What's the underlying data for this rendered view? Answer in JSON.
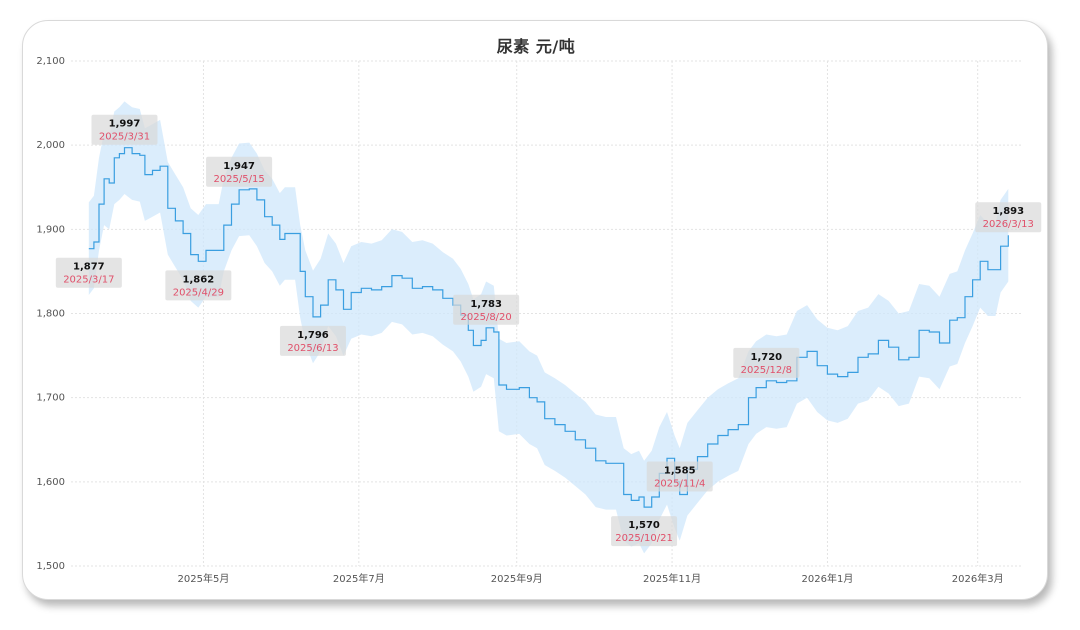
{
  "chart_data": {
    "type": "line",
    "title": "尿素 元/吨",
    "xlabel": "",
    "ylabel": "",
    "ylim": [
      1500,
      2100
    ],
    "y_ticks": [
      1500,
      1600,
      1700,
      1800,
      1900,
      2000,
      2100
    ],
    "y_tick_labels": [
      "1,500",
      "1,600",
      "1,700",
      "1,800",
      "1,900",
      "2,000",
      "2,100"
    ],
    "x_ticks": [
      {
        "date": "2025-05-01",
        "label": "2025年5月"
      },
      {
        "date": "2025-07-01",
        "label": "2025年7月"
      },
      {
        "date": "2025-09-01",
        "label": "2025年9月"
      },
      {
        "date": "2025-11-01",
        "label": "2025年11月"
      },
      {
        "date": "2026-01-01",
        "label": "2026年1月"
      },
      {
        "date": "2026-03-01",
        "label": "2026年3月"
      }
    ],
    "xlim": [
      "2025-03-10",
      "2026-03-18"
    ],
    "grid": true,
    "line_color": "#3a9ee0",
    "band_color": "#cfe7fb",
    "band_half_width": 55,
    "series": [
      {
        "values": [
          [
            "2025-03-17",
            1877
          ],
          [
            "2025-03-19",
            1885
          ],
          [
            "2025-03-21",
            1930
          ],
          [
            "2025-03-23",
            1960
          ],
          [
            "2025-03-25",
            1955
          ],
          [
            "2025-03-27",
            1985
          ],
          [
            "2025-03-29",
            1990
          ],
          [
            "2025-03-31",
            1997
          ],
          [
            "2025-04-03",
            1990
          ],
          [
            "2025-04-06",
            1988
          ],
          [
            "2025-04-08",
            1965
          ],
          [
            "2025-04-11",
            1970
          ],
          [
            "2025-04-14",
            1975
          ],
          [
            "2025-04-17",
            1925
          ],
          [
            "2025-04-20",
            1910
          ],
          [
            "2025-04-23",
            1895
          ],
          [
            "2025-04-26",
            1870
          ],
          [
            "2025-04-29",
            1862
          ],
          [
            "2025-05-02",
            1875
          ],
          [
            "2025-05-07",
            1875
          ],
          [
            "2025-05-09",
            1905
          ],
          [
            "2025-05-12",
            1930
          ],
          [
            "2025-05-15",
            1947
          ],
          [
            "2025-05-19",
            1948
          ],
          [
            "2025-05-22",
            1935
          ],
          [
            "2025-05-25",
            1915
          ],
          [
            "2025-05-28",
            1905
          ],
          [
            "2025-05-31",
            1888
          ],
          [
            "2025-06-02",
            1895
          ],
          [
            "2025-06-06",
            1895
          ],
          [
            "2025-06-08",
            1850
          ],
          [
            "2025-06-10",
            1820
          ],
          [
            "2025-06-13",
            1796
          ],
          [
            "2025-06-16",
            1810
          ],
          [
            "2025-06-19",
            1840
          ],
          [
            "2025-06-22",
            1828
          ],
          [
            "2025-06-25",
            1805
          ],
          [
            "2025-06-28",
            1825
          ],
          [
            "2025-07-02",
            1830
          ],
          [
            "2025-07-06",
            1828
          ],
          [
            "2025-07-10",
            1832
          ],
          [
            "2025-07-14",
            1845
          ],
          [
            "2025-07-18",
            1842
          ],
          [
            "2025-07-22",
            1830
          ],
          [
            "2025-07-26",
            1832
          ],
          [
            "2025-07-30",
            1828
          ],
          [
            "2025-08-03",
            1818
          ],
          [
            "2025-08-07",
            1810
          ],
          [
            "2025-08-10",
            1798
          ],
          [
            "2025-08-13",
            1780
          ],
          [
            "2025-08-15",
            1762
          ],
          [
            "2025-08-18",
            1768
          ],
          [
            "2025-08-20",
            1783
          ],
          [
            "2025-08-23",
            1778
          ],
          [
            "2025-08-25",
            1715
          ],
          [
            "2025-08-28",
            1710
          ],
          [
            "2025-09-02",
            1712
          ],
          [
            "2025-09-06",
            1700
          ],
          [
            "2025-09-09",
            1695
          ],
          [
            "2025-09-12",
            1675
          ],
          [
            "2025-09-16",
            1668
          ],
          [
            "2025-09-20",
            1660
          ],
          [
            "2025-09-24",
            1650
          ],
          [
            "2025-09-28",
            1640
          ],
          [
            "2025-10-02",
            1625
          ],
          [
            "2025-10-06",
            1622
          ],
          [
            "2025-10-10",
            1622
          ],
          [
            "2025-10-13",
            1585
          ],
          [
            "2025-10-16",
            1578
          ],
          [
            "2025-10-19",
            1582
          ],
          [
            "2025-10-21",
            1570
          ],
          [
            "2025-10-24",
            1582
          ],
          [
            "2025-10-27",
            1610
          ],
          [
            "2025-10-30",
            1628
          ],
          [
            "2025-11-02",
            1600
          ],
          [
            "2025-11-04",
            1585
          ],
          [
            "2025-11-07",
            1615
          ],
          [
            "2025-11-11",
            1630
          ],
          [
            "2025-11-15",
            1645
          ],
          [
            "2025-11-19",
            1655
          ],
          [
            "2025-11-23",
            1662
          ],
          [
            "2025-11-27",
            1668
          ],
          [
            "2025-12-01",
            1700
          ],
          [
            "2025-12-04",
            1712
          ],
          [
            "2025-12-08",
            1720
          ],
          [
            "2025-12-12",
            1718
          ],
          [
            "2025-12-16",
            1720
          ],
          [
            "2025-12-20",
            1748
          ],
          [
            "2025-12-24",
            1755
          ],
          [
            "2025-12-28",
            1738
          ],
          [
            "2026-01-01",
            1728
          ],
          [
            "2026-01-05",
            1725
          ],
          [
            "2026-01-09",
            1730
          ],
          [
            "2026-01-13",
            1748
          ],
          [
            "2026-01-17",
            1752
          ],
          [
            "2026-01-21",
            1768
          ],
          [
            "2026-01-25",
            1760
          ],
          [
            "2026-01-29",
            1745
          ],
          [
            "2026-02-02",
            1748
          ],
          [
            "2026-02-06",
            1780
          ],
          [
            "2026-02-10",
            1778
          ],
          [
            "2026-02-14",
            1765
          ],
          [
            "2026-02-18",
            1792
          ],
          [
            "2026-02-21",
            1795
          ],
          [
            "2026-02-24",
            1820
          ],
          [
            "2026-02-27",
            1840
          ],
          [
            "2026-03-02",
            1862
          ],
          [
            "2026-03-05",
            1852
          ],
          [
            "2026-03-08",
            1852
          ],
          [
            "2026-03-10",
            1880
          ],
          [
            "2026-03-13",
            1893
          ]
        ]
      }
    ],
    "annotations": [
      {
        "date": "2025-03-17",
        "value": "1,877",
        "date_label": "2025/3/17",
        "y": 1877,
        "position": "below"
      },
      {
        "date": "2025-03-31",
        "value": "1,997",
        "date_label": "2025/3/31",
        "y": 1997,
        "position": "above"
      },
      {
        "date": "2025-04-29",
        "value": "1,862",
        "date_label": "2025/4/29",
        "y": 1862,
        "position": "below"
      },
      {
        "date": "2025-05-15",
        "value": "1,947",
        "date_label": "2025/5/15",
        "y": 1947,
        "position": "above"
      },
      {
        "date": "2025-06-13",
        "value": "1,796",
        "date_label": "2025/6/13",
        "y": 1796,
        "position": "below"
      },
      {
        "date": "2025-08-20",
        "value": "1,783",
        "date_label": "2025/8/20",
        "y": 1783,
        "position": "above"
      },
      {
        "date": "2025-10-21",
        "value": "1,570",
        "date_label": "2025/10/21",
        "y": 1570,
        "position": "below"
      },
      {
        "date": "2025-11-04",
        "value": "1,585",
        "date_label": "2025/11/4",
        "y": 1585,
        "position": "above"
      },
      {
        "date": "2025-12-08",
        "value": "1,720",
        "date_label": "2025/12/8",
        "y": 1720,
        "position": "above"
      },
      {
        "date": "2026-03-13",
        "value": "1,893",
        "date_label": "2026/3/13",
        "y": 1893,
        "position": "above"
      }
    ]
  }
}
